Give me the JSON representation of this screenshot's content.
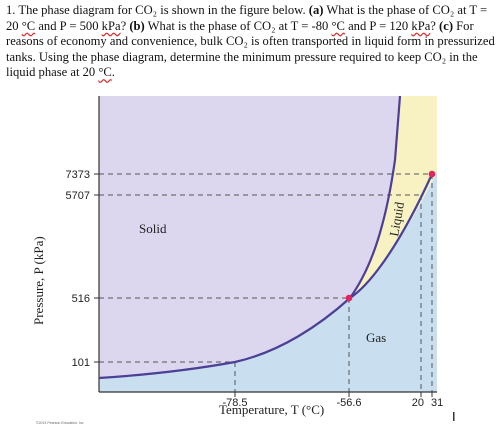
{
  "question": {
    "number": "1.",
    "part1": "The phase diagram for CO₂ is shown in the figure below.",
    "a_label": "(a)",
    "a_text1": "What is the phase of CO₂ at T = 20",
    "a_unit": "°C",
    "a_text2": "and P = 500",
    "a_unit2": "kPa",
    "a_text3": "?",
    "b_label": "(b)",
    "b_text1": "What is the phase of CO₂ at T = -80",
    "b_unit": "°C",
    "b_text2": "and P = 120",
    "b_unit2": "kPa",
    "b_text3": "?",
    "c_label": "(c)",
    "c_text1": "For reasons of economy and convenience, bulk CO₂ is often transported in liquid form in pressurized tanks. Using the phase diagram, determine the minimum pressure required to keep CO₂ in the liquid phase at 20",
    "c_unit": "°C",
    "c_text2": "."
  },
  "chart_data": {
    "type": "area",
    "title": "",
    "xlabel": "Temperature, T (°C)",
    "ylabel": "Pressure, P (kPa)",
    "x_ticks": [
      "-78.5",
      "-56.6",
      "20",
      "31"
    ],
    "y_ticks": [
      "101",
      "516",
      "5707",
      "7373"
    ],
    "regions": [
      "Solid",
      "Liquid",
      "Gas"
    ],
    "key_points": [
      {
        "name": "sublimation at 1 atm",
        "x": -78.5,
        "y": 101
      },
      {
        "name": "triple point",
        "x": -56.6,
        "y": 516
      },
      {
        "name": "vapor pressure at 20 °C",
        "x": 20,
        "y": 5707
      },
      {
        "name": "critical point",
        "x": 31,
        "y": 7373
      }
    ],
    "scale": "not to scale (schematic)",
    "grid": false,
    "colors": {
      "solid": "#dcd7ee",
      "liquid": "#f8f2c2",
      "gas": "#c9dff0",
      "curve": "#4b3f96",
      "point": "#e0245e",
      "dashed": "#555555"
    }
  },
  "credit": "©2013 Pearson Education, Inc",
  "cursor": "I"
}
